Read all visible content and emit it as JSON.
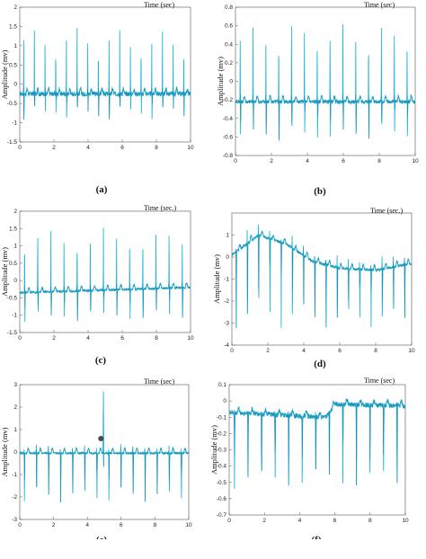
{
  "colors": {
    "signal_light": "#22b6d6",
    "signal_dark": "#1a7fa6",
    "marker": "#4a4a4a",
    "axis": "#555555"
  },
  "caption_fragment": "",
  "chart_data": [
    {
      "id": "a",
      "panel_label": "(a)",
      "type": "line",
      "title": "Time (sec)",
      "xlabel": "",
      "ylabel": "Amplitude (mv)",
      "xlim": [
        0,
        10
      ],
      "ylim": [
        -1.5,
        2
      ],
      "xticks": [
        0,
        2,
        4,
        6,
        8,
        10
      ],
      "yticks": [
        -1.5,
        -1,
        -0.5,
        0,
        0.5,
        1,
        1.5,
        2
      ],
      "ytick_labels": [
        "-1.5",
        "-1",
        "-0.5",
        "0",
        "0.5",
        "1",
        "1.5",
        "2"
      ],
      "xticks_drawn": [
        0,
        2,
        4,
        6,
        8,
        10
      ],
      "baseline": [
        [
          0,
          -0.25
        ],
        [
          10,
          -0.25
        ]
      ],
      "r_peak": 1.5,
      "s_depth": -0.9,
      "heart_rate_beats": 16,
      "noise": 0.12
    },
    {
      "id": "b",
      "panel_label": "(b)",
      "type": "line",
      "title": "Time (sec)",
      "xlabel": "",
      "ylabel": "Amplitude (mv)",
      "xlim": [
        0,
        10
      ],
      "ylim": [
        -0.8,
        0.8
      ],
      "xticks": [
        0,
        2,
        4,
        6,
        8,
        10
      ],
      "yticks": [
        -0.8,
        -0.6,
        -0.4,
        -0.2,
        0,
        0.2,
        0.4,
        0.6,
        0.8
      ],
      "ytick_labels": [
        "-0.8",
        "-0.6",
        "-0.4",
        "-0.2",
        "0",
        "0.2",
        "0.4",
        "0.6",
        "0.8"
      ],
      "baseline": [
        [
          0,
          -0.22
        ],
        [
          10,
          -0.22
        ]
      ],
      "r_peak": 0.65,
      "s_depth": -0.65,
      "heart_rate_beats": 14,
      "noise": 0.04
    },
    {
      "id": "c",
      "panel_label": "(c)",
      "type": "line",
      "title": "Time (sec.)",
      "xlabel": "",
      "ylabel": "Amplitude (mv)",
      "xlim": [
        0,
        10
      ],
      "ylim": [
        -1.5,
        2
      ],
      "xticks": [
        0,
        2,
        4,
        6,
        8,
        10
      ],
      "yticks": [
        -1.5,
        -1,
        -0.5,
        0,
        0.5,
        1,
        1.5,
        2
      ],
      "ytick_labels": [
        "-1.5",
        "-1",
        "-0.5",
        "0",
        "0.5",
        "1",
        "1.5",
        "2"
      ],
      "baseline": [
        [
          0,
          -0.35
        ],
        [
          10,
          -0.2
        ]
      ],
      "r_peak": 1.5,
      "s_depth": -1.2,
      "heart_rate_beats": 13,
      "noise": 0.06
    },
    {
      "id": "d",
      "panel_label": "(d)",
      "type": "line",
      "title": "Time (sec.)",
      "xlabel": "",
      "ylabel": "Amplitude (mv)",
      "xlim": [
        0,
        10
      ],
      "ylim": [
        -4,
        2
      ],
      "xticks": [
        0,
        2,
        4,
        6,
        8,
        10
      ],
      "yticks": [
        -4,
        -3,
        -2,
        -1,
        0,
        1
      ],
      "ytick_labels": [
        "-4",
        "-3",
        "-2",
        "-1",
        "0",
        "1"
      ],
      "baseline": [
        [
          0,
          0.1
        ],
        [
          1.5,
          1.0
        ],
        [
          3,
          0.6
        ],
        [
          4.5,
          -0.2
        ],
        [
          6,
          -0.5
        ],
        [
          8,
          -0.6
        ],
        [
          10,
          -0.3
        ]
      ],
      "r_peak_rel": 0.6,
      "s_depth": -3.3,
      "heart_rate_beats": 16,
      "noise": 0.12
    },
    {
      "id": "e",
      "panel_label": "(e)",
      "type": "line",
      "title": "Time (sec)",
      "xlabel": "",
      "ylabel": "Amplitude (mv)",
      "xlim": [
        0,
        10
      ],
      "ylim": [
        -3,
        3
      ],
      "xticks": [
        0,
        2,
        4,
        6,
        8,
        10
      ],
      "yticks": [
        -3,
        -2,
        -1,
        0,
        1,
        2,
        3
      ],
      "ytick_labels": [
        "-3",
        "-2",
        "-1",
        "0",
        "1",
        "2",
        "3"
      ],
      "baseline": [
        [
          0,
          -0.05
        ],
        [
          10,
          -0.05
        ]
      ],
      "r_peak": 0.35,
      "s_depth": -2.3,
      "heart_rate_beats": 14,
      "noise": 0.08,
      "outlier": {
        "x": 4.95,
        "y": 2.7
      },
      "marker_point": {
        "x": 4.8,
        "y": 0.6
      }
    },
    {
      "id": "f",
      "panel_label": "(f)",
      "type": "line",
      "title": "Time (sec)",
      "xlabel": "",
      "ylabel": "Amplitude (mv)",
      "xlim": [
        0,
        10
      ],
      "ylim": [
        -0.7,
        0.1
      ],
      "xticks": [
        0,
        2,
        4,
        6,
        8,
        10
      ],
      "yticks": [
        -0.7,
        -0.6,
        -0.5,
        -0.4,
        -0.3,
        -0.2,
        -0.1,
        0,
        0.1
      ],
      "ytick_labels": [
        "-0.7",
        "-0.6",
        "-0.5",
        "-0.4",
        "-0.3",
        "-0.2",
        "-0.1",
        "0",
        "0.1"
      ],
      "baseline": [
        [
          0,
          -0.07
        ],
        [
          5.5,
          -0.1
        ],
        [
          6,
          -0.02
        ],
        [
          10,
          -0.03
        ]
      ],
      "r_peak_rel": 0.02,
      "s_depth": -0.55,
      "heart_rate_beats": 13,
      "noise": 0.03
    }
  ]
}
